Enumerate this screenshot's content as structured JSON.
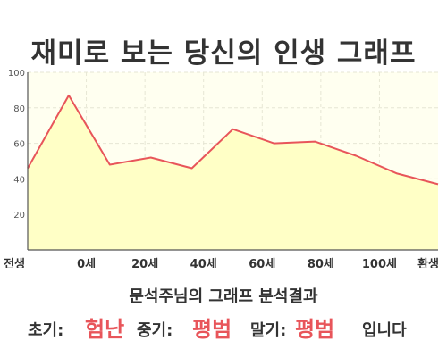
{
  "title": "재미로 보는 당신의 인생 그래프",
  "colors": {
    "line": "#e8555a",
    "area": "#ffffc6",
    "plot_bg": "#fffff0",
    "grid": "#e6e6d4",
    "axis": "#555555",
    "highlight": "#e8555a"
  },
  "chart_data": {
    "type": "area",
    "title": "재미로 보는 당신의 인생 그래프",
    "xlabel": "",
    "ylabel": "",
    "x_ticks": [
      "전생",
      "0세",
      "20세",
      "40세",
      "60세",
      "80세",
      "100세",
      "환생"
    ],
    "y_ticks": [
      "100",
      "80",
      "60",
      "40",
      "20"
    ],
    "ylim": [
      0,
      100
    ],
    "grid": true,
    "legend": "none",
    "series": [
      {
        "values": [
          46,
          87,
          48,
          52,
          46,
          68,
          60,
          61,
          53,
          43,
          37
        ]
      }
    ]
  },
  "summary": {
    "heading": "문석주님의 그래프 분석결과",
    "early_label": "초기:",
    "early_value": "험난",
    "middle_label": "중기:",
    "middle_value": "평범",
    "late_label": "말기:",
    "late_value": "평범",
    "ending": "입니다"
  }
}
